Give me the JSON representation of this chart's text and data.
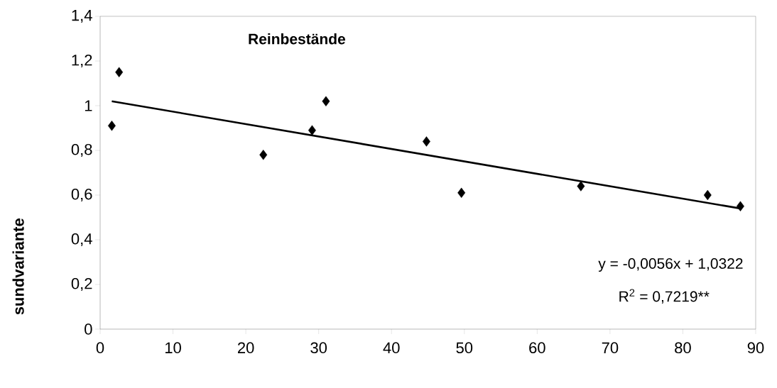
{
  "chart_data": {
    "type": "scatter",
    "title": "Reinbestände",
    "ylabel": "sundvariante",
    "annotations": [
      "y = -0,0056x + 1,0322",
      "R$^{2}$ = 0,7219**"
    ],
    "series": [
      {
        "marker": "diamond",
        "color": "#000000",
        "x": [
          1.6,
          2.6,
          22.4,
          29.1,
          31.0,
          44.8,
          49.6,
          66.0,
          83.4,
          87.9
        ],
        "values": [
          0.91,
          1.15,
          0.78,
          0.89,
          1.02,
          0.84,
          0.61,
          0.64,
          0.6,
          0.55
        ]
      },
      {
        "type": "line",
        "marker": "none",
        "color": "#000000",
        "x": [
          1.6,
          87.9
        ],
        "values": [
          1.02,
          0.54
        ]
      }
    ],
    "xlim": [
      0,
      90
    ],
    "xticks": [
      0,
      10,
      20,
      30,
      40,
      50,
      60,
      70,
      80,
      90
    ],
    "ylim": [
      0,
      1.4
    ],
    "yticks": [
      0,
      {
        "value": 0.2,
        "label": "0,2"
      },
      {
        "value": 0.4,
        "label": "0,4"
      },
      {
        "value": 0.6,
        "label": "0,6"
      },
      {
        "value": 0.8,
        "label": "0,8"
      },
      1,
      {
        "value": 1.2,
        "label": "1,2"
      },
      {
        "value": 1.4,
        "label": "1,4"
      }
    ],
    "grid": false
  }
}
